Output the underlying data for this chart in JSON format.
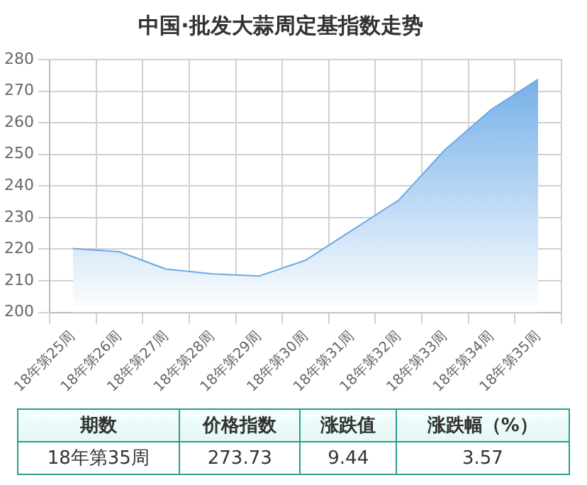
{
  "chart_data": {
    "type": "area",
    "title": "中国·批发大蒜周定基指数走势",
    "categories": [
      "18年第25周",
      "18年第26周",
      "18年第27周",
      "18年第28周",
      "18年第29周",
      "18年第30周",
      "18年第31周",
      "18年第32周",
      "18年第33周",
      "18年第34周",
      "18年第35周"
    ],
    "series": [
      {
        "color": "#6aa9e6",
        "values": [
          220.2,
          219.2,
          213.7,
          212.2,
          211.5,
          216.5,
          226,
          235.5,
          251.5,
          264.3,
          273.73
        ]
      }
    ],
    "ylim": [
      200,
      280
    ],
    "yticks": [
      200,
      210,
      220,
      230,
      240,
      250,
      260,
      270,
      280
    ],
    "grid": true,
    "legend": false,
    "annotations": [
      "期数",
      "价格指数",
      "涨跌值",
      "涨跌幅（%）",
      "18年第35周",
      "273.73",
      "9.44",
      "3.57"
    ]
  }
}
